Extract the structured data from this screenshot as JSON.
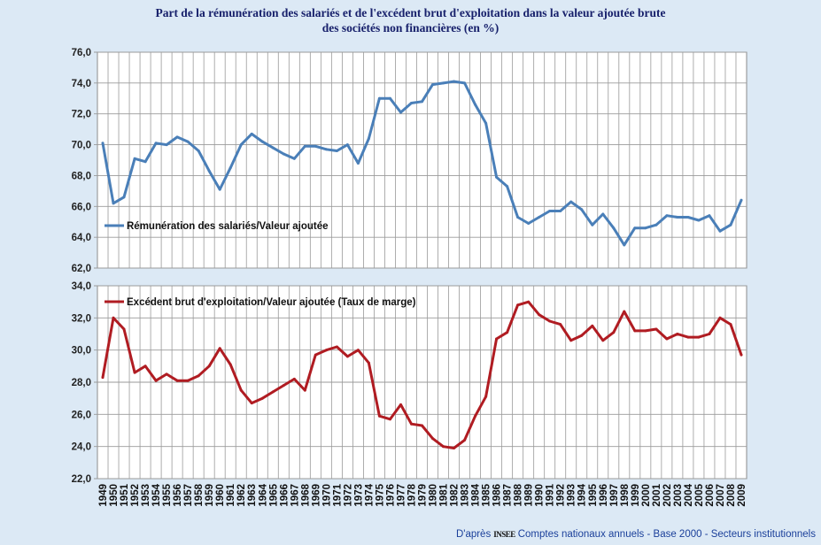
{
  "header": {
    "title_line1": "Part de la rémunération des salariés et de l'excédent brut d'exploitation dans la valeur ajoutée brute",
    "title_line2": "des sociétés non financières (en %)"
  },
  "footer": {
    "prefix": "D'après",
    "logo_text": "INSEE",
    "source": "Comptes nationaux annuels - Base 2000 - Secteurs institutionnels"
  },
  "colors": {
    "background": "#dce9f5",
    "plot_bg": "#ffffff",
    "grid": "#9a9a9a",
    "series_top": "#4a7fb8",
    "series_bottom": "#b01c22",
    "title": "#17206b",
    "footer": "#1a3f9a"
  },
  "chart_data": [
    {
      "type": "line",
      "title": "",
      "xlabel": "",
      "ylabel": "",
      "ylim": [
        62.0,
        76.0
      ],
      "yticks": [
        "62,0",
        "64,0",
        "66,0",
        "68,0",
        "70,0",
        "72,0",
        "74,0",
        "76,0"
      ],
      "grid": true,
      "legend_position": "left-center",
      "x": [
        1949,
        1950,
        1951,
        1952,
        1953,
        1954,
        1955,
        1956,
        1957,
        1958,
        1959,
        1960,
        1961,
        1962,
        1963,
        1964,
        1965,
        1966,
        1967,
        1968,
        1969,
        1970,
        1971,
        1972,
        1973,
        1974,
        1975,
        1976,
        1977,
        1978,
        1979,
        1980,
        1981,
        1982,
        1983,
        1984,
        1985,
        1986,
        1987,
        1988,
        1989,
        1990,
        1991,
        1992,
        1993,
        1994,
        1995,
        1996,
        1997,
        1998,
        1999,
        2000,
        2001,
        2002,
        2003,
        2004,
        2005,
        2006,
        2007,
        2008,
        2009
      ],
      "series": [
        {
          "name": "Rémunération des salariés/Valeur ajoutée",
          "values": [
            70.1,
            66.2,
            66.6,
            69.1,
            68.9,
            70.1,
            70.0,
            70.5,
            70.2,
            69.6,
            68.3,
            67.1,
            68.5,
            70.0,
            70.7,
            70.2,
            69.8,
            69.4,
            69.1,
            69.9,
            69.9,
            69.7,
            69.6,
            70.0,
            68.8,
            70.4,
            73.0,
            73.0,
            72.1,
            72.7,
            72.8,
            73.9,
            74.0,
            74.1,
            74.0,
            72.6,
            71.4,
            67.9,
            67.3,
            65.3,
            64.9,
            65.3,
            65.7,
            65.7,
            66.3,
            65.8,
            64.8,
            65.5,
            64.6,
            63.5,
            64.6,
            64.6,
            64.8,
            65.4,
            65.3,
            65.3,
            65.1,
            65.4,
            64.4,
            64.8,
            66.4
          ]
        }
      ]
    },
    {
      "type": "line",
      "title": "",
      "xlabel": "",
      "ylabel": "",
      "ylim": [
        22.0,
        34.0
      ],
      "yticks": [
        "22,0",
        "24,0",
        "26,0",
        "28,0",
        "30,0",
        "32,0",
        "34,0"
      ],
      "grid": true,
      "legend_position": "top-left",
      "x": [
        1949,
        1950,
        1951,
        1952,
        1953,
        1954,
        1955,
        1956,
        1957,
        1958,
        1959,
        1960,
        1961,
        1962,
        1963,
        1964,
        1965,
        1966,
        1967,
        1968,
        1969,
        1970,
        1971,
        1972,
        1973,
        1974,
        1975,
        1976,
        1977,
        1978,
        1979,
        1980,
        1981,
        1982,
        1983,
        1984,
        1985,
        1986,
        1987,
        1988,
        1989,
        1990,
        1991,
        1992,
        1993,
        1994,
        1995,
        1996,
        1997,
        1998,
        1999,
        2000,
        2001,
        2002,
        2003,
        2004,
        2005,
        2006,
        2007,
        2008,
        2009
      ],
      "series": [
        {
          "name": "Excédent brut d'exploitation/Valeur ajoutée (Taux de marge)",
          "values": [
            28.3,
            32.0,
            31.3,
            28.6,
            29.0,
            28.1,
            28.5,
            28.1,
            28.1,
            28.4,
            29.0,
            30.1,
            29.1,
            27.5,
            26.7,
            27.0,
            27.4,
            27.8,
            28.2,
            27.5,
            29.7,
            30.0,
            30.2,
            29.6,
            30.0,
            29.2,
            25.9,
            25.7,
            26.6,
            25.4,
            25.3,
            24.5,
            24.0,
            23.9,
            24.4,
            25.9,
            27.1,
            30.7,
            31.1,
            32.8,
            33.0,
            32.2,
            31.8,
            31.6,
            30.6,
            30.9,
            31.5,
            30.6,
            31.1,
            32.4,
            31.2,
            31.2,
            31.3,
            30.7,
            31.0,
            30.8,
            30.8,
            31.0,
            32.0,
            31.6,
            29.7
          ]
        }
      ]
    }
  ]
}
